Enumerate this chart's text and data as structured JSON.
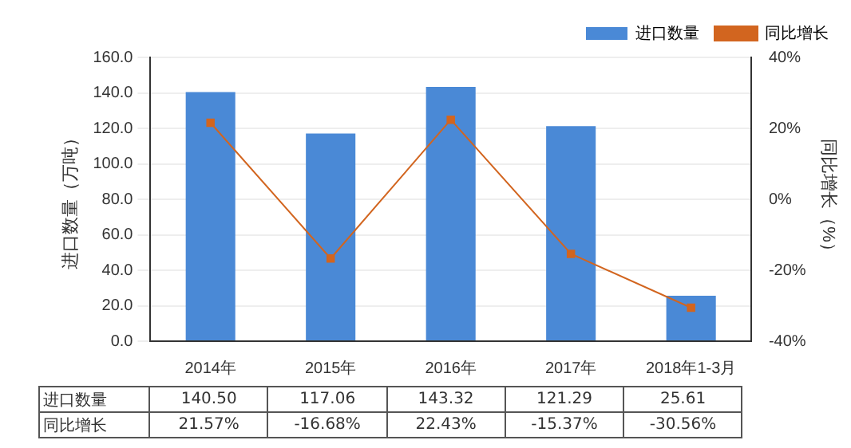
{
  "chart_data": {
    "type": "bar",
    "categories": [
      "2014年",
      "2015年",
      "2016年",
      "2017年",
      "2018年1-3月"
    ],
    "ylabel": "进口数量（万吨）",
    "y2label": "同比增长（%）",
    "series": [
      {
        "name": "进口数量",
        "color": "#4a89d6",
        "values": [
          140.5,
          117.06,
          143.32,
          121.29,
          25.61
        ],
        "value_labels": [
          "140.50",
          "117.06",
          "143.32",
          "121.29",
          "25.61"
        ]
      },
      {
        "name": "同比增长",
        "type": "line",
        "axis": "y2",
        "color": "#d2651f",
        "marker": "square",
        "values": [
          21.57,
          -16.68,
          22.43,
          -15.37,
          -30.56
        ],
        "value_labels": [
          "21.57%",
          "-16.68%",
          "22.43%",
          "-15.37%",
          "-30.56%"
        ]
      }
    ],
    "ylim": [
      0,
      160
    ],
    "yticks": [
      {
        "value": 0,
        "label": "0.0"
      },
      {
        "value": 20,
        "label": "20.0"
      },
      {
        "value": 40,
        "label": "40.0"
      },
      {
        "value": 60,
        "label": "60.0"
      },
      {
        "value": 80,
        "label": "80.0"
      },
      {
        "value": 100,
        "label": "100.0"
      },
      {
        "value": 120,
        "label": "120.0"
      },
      {
        "value": 140,
        "label": "140.0"
      },
      {
        "value": 160,
        "label": "160.0"
      }
    ],
    "y2lim": [
      -40,
      40
    ],
    "y2ticks": [
      {
        "value": -40,
        "label": "-40%"
      },
      {
        "value": -20,
        "label": "-20%"
      },
      {
        "value": 0,
        "label": "0%"
      },
      {
        "value": 20,
        "label": "20%"
      },
      {
        "value": 40,
        "label": "40%"
      }
    ],
    "grid": "y",
    "legend": "top right"
  }
}
